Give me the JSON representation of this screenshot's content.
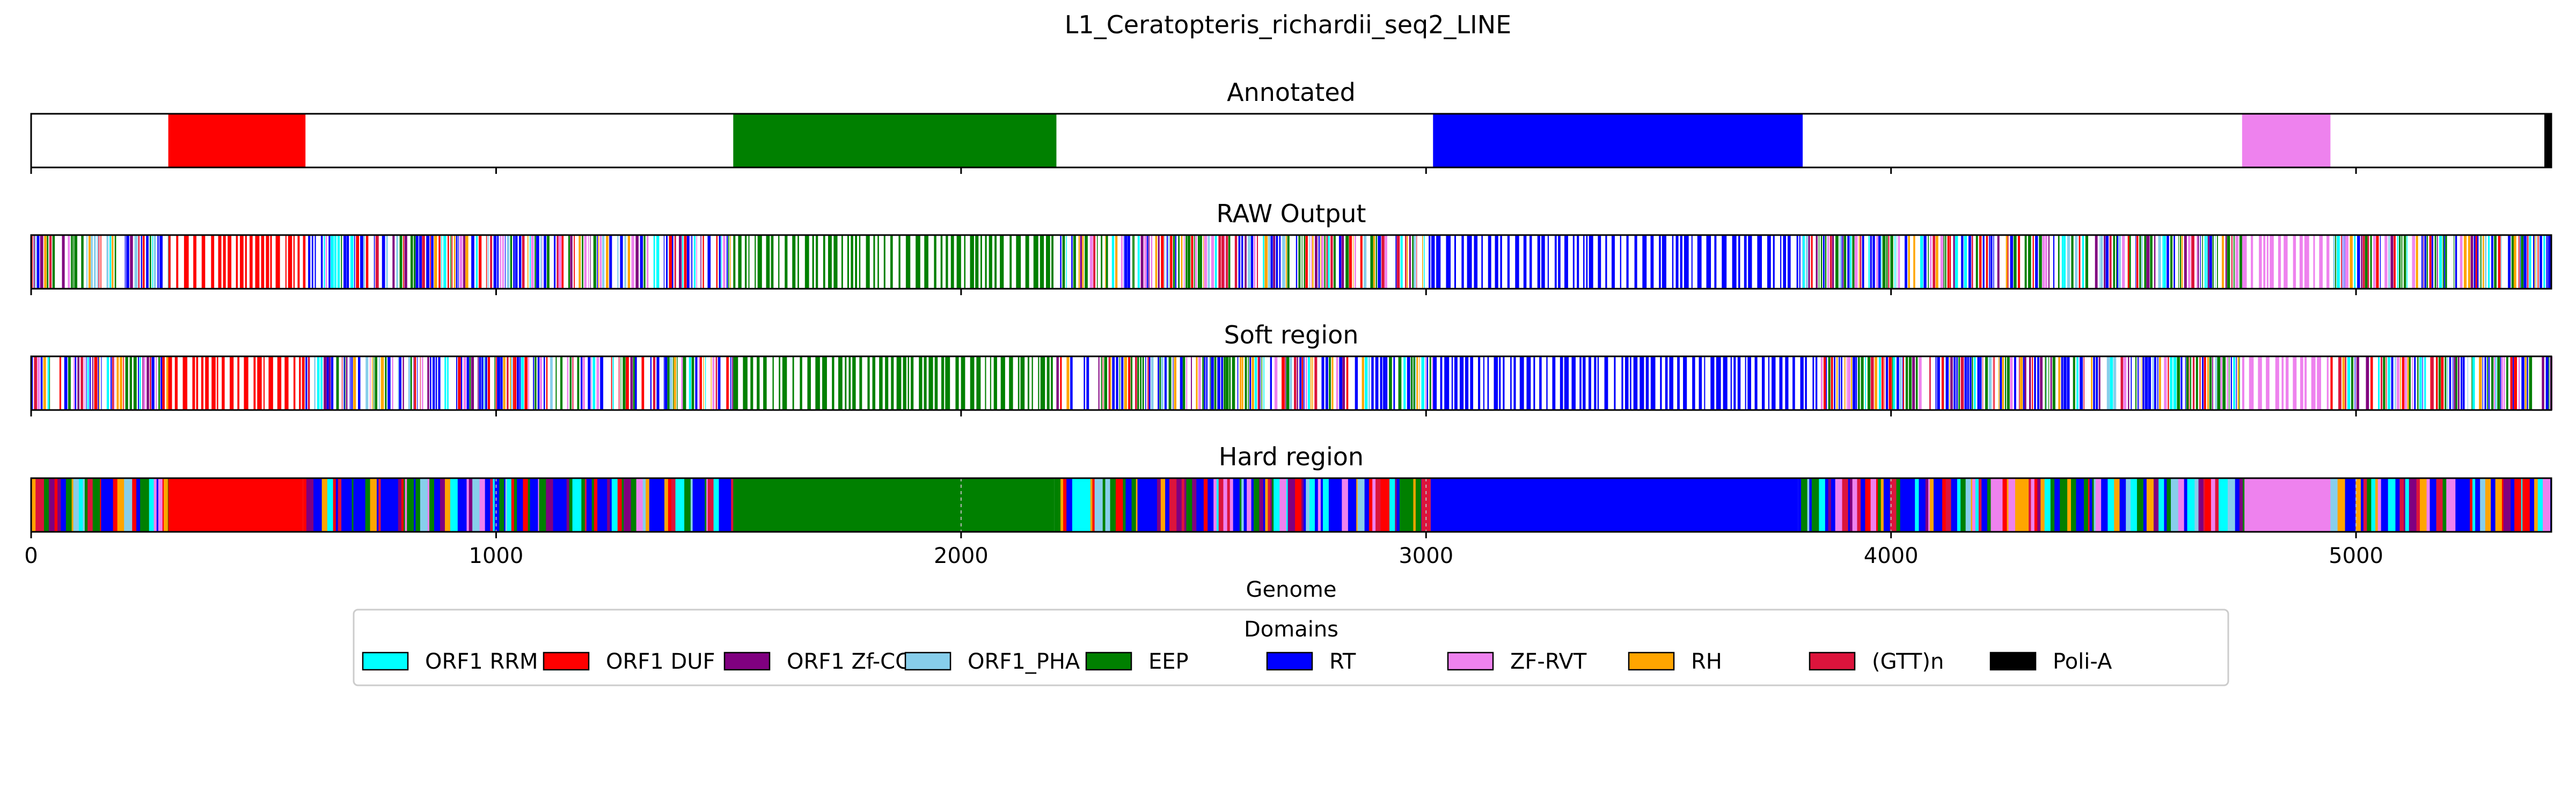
{
  "figure_title": "L1_Ceratopteris_richardii_seq2_LINE",
  "xlabel": "Genome",
  "legend_title": "Domains",
  "chart_data": {
    "type": "genome-track",
    "title": "L1_Ceratopteris_richardii_seq2_LINE",
    "xlabel": "Genome",
    "xlim": [
      0,
      5420
    ],
    "xticks": [
      0,
      1000,
      2000,
      3000,
      4000,
      5000
    ],
    "legend_placement": "below",
    "domains": [
      {
        "name": "ORF1 RRM",
        "color": "#00ffff"
      },
      {
        "name": "ORF1 DUF",
        "color": "#ff0000"
      },
      {
        "name": "ORF1 Zf-CCHC",
        "color": "#800080"
      },
      {
        "name": "ORF1_PHA",
        "color": "#87ceeb"
      },
      {
        "name": "EEP",
        "color": "#008000"
      },
      {
        "name": "RT",
        "color": "#0000ff"
      },
      {
        "name": "ZF-RVT",
        "color": "#ee82ee"
      },
      {
        "name": "RH",
        "color": "#ffa500"
      },
      {
        "name": "(GTT)n",
        "color": "#dc143c"
      },
      {
        "name": "Poli-A",
        "color": "#000000"
      }
    ],
    "tracks": [
      {
        "title": "Annotated",
        "style": "blocks",
        "regions": [
          {
            "domain": "ORF1 DUF",
            "start": 295,
            "end": 590
          },
          {
            "domain": "EEP",
            "start": 1510,
            "end": 2205
          },
          {
            "domain": "RT",
            "start": 3015,
            "end": 3810
          },
          {
            "domain": "ZF-RVT",
            "start": 4755,
            "end": 4945
          },
          {
            "domain": "Poli-A",
            "start": 5405,
            "end": 5420
          }
        ]
      },
      {
        "title": "RAW Output",
        "style": "sparse",
        "regions": [
          {
            "domain": "mixed",
            "start": 0,
            "end": 295
          },
          {
            "domain": "ORF1 DUF",
            "start": 295,
            "end": 590
          },
          {
            "domain": "mixed",
            "start": 590,
            "end": 1510
          },
          {
            "domain": "EEP",
            "start": 1510,
            "end": 2205
          },
          {
            "domain": "mixed",
            "start": 2205,
            "end": 3015
          },
          {
            "domain": "RT",
            "start": 3015,
            "end": 3810
          },
          {
            "domain": "mixed",
            "start": 3810,
            "end": 4755
          },
          {
            "domain": "ZF-RVT",
            "start": 4755,
            "end": 4945
          },
          {
            "domain": "mixed",
            "start": 4945,
            "end": 5420
          }
        ]
      },
      {
        "title": "Soft region",
        "style": "sparse",
        "regions": [
          {
            "domain": "mixed",
            "start": 0,
            "end": 295
          },
          {
            "domain": "ORF1 DUF",
            "start": 295,
            "end": 590
          },
          {
            "domain": "mixed",
            "start": 590,
            "end": 1510
          },
          {
            "domain": "EEP",
            "start": 1510,
            "end": 2205
          },
          {
            "domain": "mixed",
            "start": 2205,
            "end": 3015
          },
          {
            "domain": "RT",
            "start": 3015,
            "end": 3810
          },
          {
            "domain": "mixed",
            "start": 3810,
            "end": 4755
          },
          {
            "domain": "ZF-RVT",
            "start": 4755,
            "end": 4945
          },
          {
            "domain": "mixed",
            "start": 4945,
            "end": 5420
          }
        ]
      },
      {
        "title": "Hard region",
        "style": "dense",
        "regions": [
          {
            "domain": "mixed",
            "start": 0,
            "end": 295
          },
          {
            "domain": "ORF1 DUF",
            "start": 295,
            "end": 585
          },
          {
            "domain": "mixed",
            "start": 585,
            "end": 1510
          },
          {
            "domain": "EEP",
            "start": 1510,
            "end": 2200
          },
          {
            "domain": "mixed",
            "start": 2200,
            "end": 2990
          },
          {
            "domain": "(GTT)n",
            "start": 2990,
            "end": 3010
          },
          {
            "domain": "RT",
            "start": 3010,
            "end": 3800
          },
          {
            "domain": "mixed",
            "start": 3800,
            "end": 4760
          },
          {
            "domain": "ZF-RVT",
            "start": 4760,
            "end": 4945
          },
          {
            "domain": "mixed",
            "start": 4945,
            "end": 5420
          }
        ]
      }
    ]
  }
}
